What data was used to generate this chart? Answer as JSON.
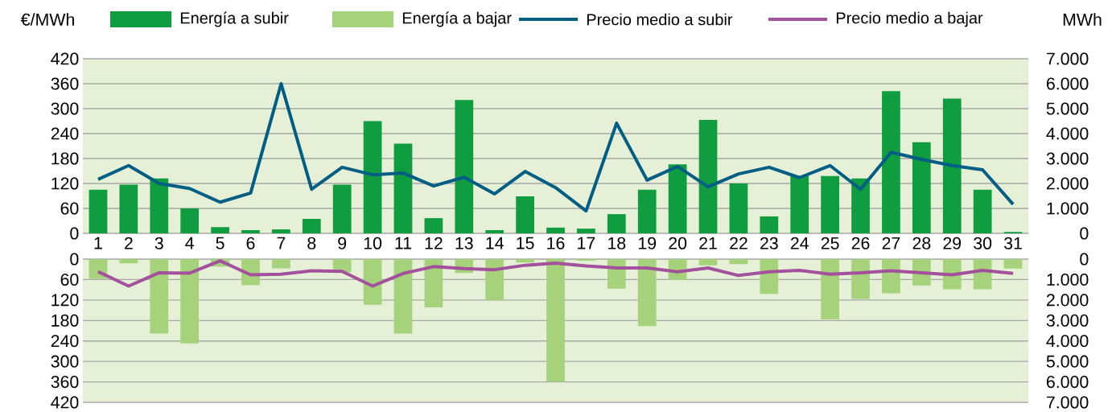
{
  "chart_data": [
    {
      "type": "bar",
      "categories": [
        "1",
        "2",
        "3",
        "4",
        "5",
        "6",
        "7",
        "8",
        "9",
        "10",
        "11",
        "12",
        "13",
        "14",
        "15",
        "16",
        "17",
        "18",
        "19",
        "20",
        "21",
        "22",
        "23",
        "24",
        "25",
        "26",
        "27",
        "28",
        "29",
        "30",
        "31"
      ],
      "series": [
        {
          "name": "Energía a subir",
          "color": "#0f9d40",
          "axis": "y2",
          "values": [
            1750,
            1950,
            2200,
            1000,
            250,
            130,
            160,
            580,
            1950,
            4500,
            3600,
            610,
            5350,
            130,
            1480,
            230,
            190,
            770,
            1750,
            2770,
            4550,
            2000,
            680,
            2300,
            2300,
            2200,
            5700,
            3650,
            5400,
            1750,
            60
          ]
        },
        {
          "name": "Precio medio a subir",
          "type": "line",
          "color": "#005e85",
          "values": [
            130,
            163,
            120,
            108,
            75,
            97,
            360,
            106,
            159,
            141,
            145,
            114,
            135,
            95,
            149,
            110,
            54,
            265,
            128,
            161,
            112,
            143,
            159,
            134,
            163,
            106,
            195,
            178,
            163,
            153,
            70
          ]
        }
      ],
      "ylabel": "€/MWh",
      "y2label": "MWh",
      "ylim": [
        0,
        420
      ],
      "yticks": [
        0,
        60,
        120,
        180,
        240,
        300,
        360,
        420
      ],
      "y2lim": [
        0,
        7000
      ],
      "y2ticks": [
        0,
        {
          "value": 1000,
          "label": "1.000"
        },
        {
          "value": 2000,
          "label": "2.000"
        },
        {
          "value": 3000,
          "label": "3.000"
        },
        {
          "value": 4000,
          "label": "4.000"
        },
        {
          "value": 5000,
          "label": "5.000"
        },
        {
          "value": 6000,
          "label": "6.000"
        },
        {
          "value": 7000,
          "label": "7.000"
        }
      ],
      "grid": "y",
      "legend": "top"
    },
    {
      "type": "bar",
      "categories": [
        "1",
        "2",
        "3",
        "4",
        "5",
        "6",
        "7",
        "8",
        "9",
        "10",
        "11",
        "12",
        "13",
        "14",
        "15",
        "16",
        "17",
        "18",
        "19",
        "20",
        "21",
        "22",
        "23",
        "24",
        "25",
        "26",
        "27",
        "28",
        "29",
        "30",
        "31"
      ],
      "series": [
        {
          "name": "Energía a bajar",
          "color": "#a6d27c",
          "axis": "y2",
          "values": [
            960,
            210,
            3640,
            4120,
            360,
            1270,
            450,
            null,
            650,
            2230,
            3640,
            2360,
            680,
            2020,
            170,
            6000,
            80,
            1440,
            3270,
            1010,
            300,
            250,
            1700,
            null,
            2940,
            1950,
            1670,
            1290,
            1470,
            1470,
            460
          ]
        },
        {
          "name": "Precio medio a bajar",
          "type": "line",
          "color": "#a3519d",
          "values": [
            37,
            79,
            40,
            41,
            5,
            46,
            44,
            34,
            36,
            79,
            42,
            22,
            28,
            31,
            18,
            12,
            20,
            26,
            26,
            37,
            26,
            48,
            37,
            33,
            44,
            40,
            34,
            40,
            46,
            33,
            42
          ]
        }
      ],
      "ylim": [
        420,
        0
      ],
      "yticks": [
        0,
        60,
        120,
        180,
        240,
        300,
        360,
        420
      ],
      "y2lim": [
        7000,
        0
      ],
      "y2ticks": [
        0,
        {
          "value": 1000,
          "label": "1.000"
        },
        {
          "value": 2000,
          "label": "2.000"
        },
        {
          "value": 3000,
          "label": "3.000"
        },
        {
          "value": 4000,
          "label": "4.000"
        },
        {
          "value": 5000,
          "label": "5.000"
        },
        {
          "value": 6000,
          "label": "6.000"
        },
        {
          "value": 7000,
          "label": "7.000"
        }
      ],
      "grid": "y",
      "legend": "top",
      "tick_labels": "y"
    }
  ]
}
